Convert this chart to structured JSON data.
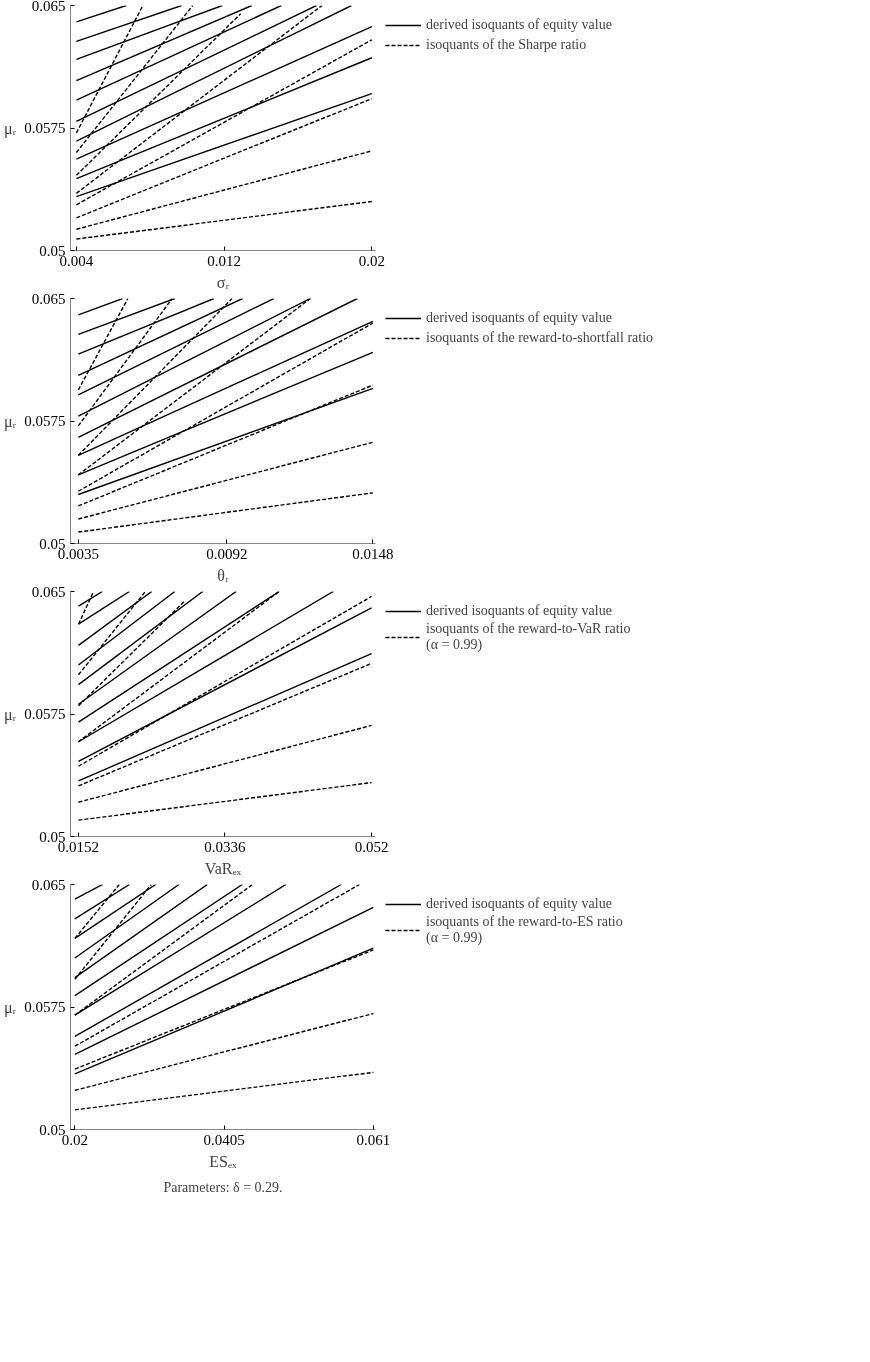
{
  "chart_data": [
    {
      "type": "line",
      "xlabel": "σᵣ",
      "ylabel": "μᵣ",
      "xlim": [
        0.00368,
        0.0202
      ],
      "ylim": [
        0.05,
        0.065
      ],
      "xticks": [
        0.004,
        0.012,
        0.02
      ],
      "yticks": [
        0.05,
        0.0575,
        0.065
      ],
      "grid": false,
      "legend": "right",
      "series": [
        {
          "name": "derived isoquants of equity value",
          "color": "#000000",
          "line_style": "solid",
          "x": [
            0.004,
            0.0067
          ],
          "values": [
            0.064,
            0.065
          ]
        },
        {
          "color": "#000000",
          "line_style": "solid",
          "x": [
            0.004,
            0.0097
          ],
          "values": [
            0.0628,
            0.065
          ]
        },
        {
          "color": "#000000",
          "line_style": "solid",
          "x": [
            0.004,
            0.0119
          ],
          "values": [
            0.0617,
            0.065
          ]
        },
        {
          "color": "#000000",
          "line_style": "solid",
          "x": [
            0.004,
            0.0135
          ],
          "values": [
            0.0604,
            0.065
          ]
        },
        {
          "color": "#000000",
          "line_style": "solid",
          "x": [
            0.004,
            0.0151
          ],
          "values": [
            0.0592,
            0.065
          ]
        },
        {
          "color": "#000000",
          "line_style": "solid",
          "x": [
            0.004,
            0.017
          ],
          "values": [
            0.0579,
            0.065
          ]
        },
        {
          "color": "#000000",
          "line_style": "solid",
          "x": [
            0.004,
            0.0189
          ],
          "values": [
            0.0567,
            0.065
          ]
        },
        {
          "color": "#000000",
          "line_style": "solid",
          "x": [
            0.004,
            0.02
          ],
          "values": [
            0.0556,
            0.0637
          ]
        },
        {
          "color": "#000000",
          "line_style": "solid",
          "x": [
            0.004,
            0.02
          ],
          "values": [
            0.0544,
            0.0618
          ]
        },
        {
          "color": "#000000",
          "line_style": "solid",
          "x": [
            0.004,
            0.02
          ],
          "values": [
            0.0533,
            0.0596
          ]
        },
        {
          "name": "isoquants of the Sharpe ratio",
          "color": "#000000",
          "line_style": "dashed",
          "x": [
            0.004,
            0.0076
          ],
          "values": [
            0.0572,
            0.065
          ]
        },
        {
          "color": "#000000",
          "line_style": "dashed",
          "x": [
            0.004,
            0.0103
          ],
          "values": [
            0.056,
            0.065
          ]
        },
        {
          "color": "#000000",
          "line_style": "dashed",
          "x": [
            0.004,
            0.0129
          ],
          "values": [
            0.0546,
            0.0645
          ]
        },
        {
          "color": "#000000",
          "line_style": "dashed",
          "x": [
            0.004,
            0.0173
          ],
          "values": [
            0.0535,
            0.065
          ]
        },
        {
          "color": "#000000",
          "line_style": "dashed",
          "x": [
            0.004,
            0.02
          ],
          "values": [
            0.0528,
            0.0629
          ]
        },
        {
          "color": "#000000",
          "line_style": "dashed",
          "x": [
            0.004,
            0.02
          ],
          "values": [
            0.052,
            0.0593
          ]
        },
        {
          "color": "#000000",
          "line_style": "dashed",
          "x": [
            0.004,
            0.02
          ],
          "values": [
            0.0513,
            0.0561
          ]
        },
        {
          "color": "#000000",
          "line_style": "dashed",
          "x": [
            0.004,
            0.02
          ],
          "values": [
            0.0507,
            0.053
          ]
        }
      ]
    },
    {
      "type": "line",
      "xlabel": "θᵣ",
      "ylabel": "μᵣ",
      "xlim": [
        0.0032,
        0.0149
      ],
      "ylim": [
        0.05,
        0.065
      ],
      "xticks": [
        0.0035,
        0.0092,
        0.0148
      ],
      "yticks": [
        0.05,
        0.0575,
        0.065
      ],
      "grid": false,
      "legend": "right",
      "series": [
        {
          "name": "derived isoquants of equity value",
          "color": "#000000",
          "line_style": "solid",
          "x": [
            0.0035,
            0.0052
          ],
          "values": [
            0.064,
            0.065
          ]
        },
        {
          "color": "#000000",
          "line_style": "solid",
          "x": [
            0.0035,
            0.0072
          ],
          "values": [
            0.0628,
            0.065
          ]
        },
        {
          "color": "#000000",
          "line_style": "solid",
          "x": [
            0.0035,
            0.0087
          ],
          "values": [
            0.0616,
            0.065
          ]
        },
        {
          "color": "#000000",
          "line_style": "solid",
          "x": [
            0.0035,
            0.0098
          ],
          "values": [
            0.0603,
            0.065
          ]
        },
        {
          "color": "#000000",
          "line_style": "solid",
          "x": [
            0.0035,
            0.011
          ],
          "values": [
            0.0591,
            0.065
          ]
        },
        {
          "color": "#000000",
          "line_style": "solid",
          "x": [
            0.0035,
            0.0124
          ],
          "values": [
            0.0578,
            0.065
          ]
        },
        {
          "color": "#000000",
          "line_style": "solid",
          "x": [
            0.0035,
            0.0142
          ],
          "values": [
            0.0565,
            0.065
          ]
        },
        {
          "color": "#000000",
          "line_style": "solid",
          "x": [
            0.0035,
            0.0148
          ],
          "values": [
            0.0554,
            0.0636
          ]
        },
        {
          "color": "#000000",
          "line_style": "solid",
          "x": [
            0.0035,
            0.0148
          ],
          "values": [
            0.0542,
            0.0617
          ]
        },
        {
          "color": "#000000",
          "line_style": "solid",
          "x": [
            0.0035,
            0.0148
          ],
          "values": [
            0.053,
            0.0595
          ]
        },
        {
          "name": "isoquants of the reward-to-shortfall ratio",
          "color": "#000000",
          "line_style": "dashed",
          "x": [
            0.0035,
            0.0054
          ],
          "values": [
            0.0594,
            0.065
          ]
        },
        {
          "color": "#000000",
          "line_style": "dashed",
          "x": [
            0.0035,
            0.0071
          ],
          "values": [
            0.0572,
            0.065
          ]
        },
        {
          "color": "#000000",
          "line_style": "dashed",
          "x": [
            0.0035,
            0.0094
          ],
          "values": [
            0.0554,
            0.065
          ]
        },
        {
          "color": "#000000",
          "line_style": "dashed",
          "x": [
            0.0035,
            0.0124
          ],
          "values": [
            0.0542,
            0.065
          ]
        },
        {
          "color": "#000000",
          "line_style": "dashed",
          "x": [
            0.0035,
            0.0148
          ],
          "values": [
            0.0532,
            0.0635
          ]
        },
        {
          "color": "#000000",
          "line_style": "dashed",
          "x": [
            0.0035,
            0.0148
          ],
          "values": [
            0.0523,
            0.0597
          ]
        },
        {
          "color": "#000000",
          "line_style": "dashed",
          "x": [
            0.0035,
            0.0148
          ],
          "values": [
            0.0515,
            0.0562
          ]
        },
        {
          "color": "#000000",
          "line_style": "dashed",
          "x": [
            0.0035,
            0.0148
          ],
          "values": [
            0.0507,
            0.0531
          ]
        }
      ]
    },
    {
      "type": "line",
      "xlabel": "VaRₑₓ",
      "ylabel": "μᵣ",
      "xlim": [
        0.0142,
        0.0525
      ],
      "ylim": [
        0.05,
        0.065
      ],
      "xticks": [
        0.0152,
        0.0336,
        0.052
      ],
      "yticks": [
        0.05,
        0.0575,
        0.065
      ],
      "grid": false,
      "legend": "right",
      "series": [
        {
          "name": "derived isoquants of equity value",
          "color": "#000000",
          "line_style": "solid",
          "x": [
            0.0152,
            0.0182
          ],
          "values": [
            0.0641,
            0.065
          ]
        },
        {
          "color": "#000000",
          "line_style": "solid",
          "x": [
            0.0152,
            0.0216
          ],
          "values": [
            0.063,
            0.065
          ]
        },
        {
          "color": "#000000",
          "line_style": "solid",
          "x": [
            0.0152,
            0.0244
          ],
          "values": [
            0.0617,
            0.065
          ]
        },
        {
          "color": "#000000",
          "line_style": "solid",
          "x": [
            0.0152,
            0.0273
          ],
          "values": [
            0.0605,
            0.065
          ]
        },
        {
          "color": "#000000",
          "line_style": "solid",
          "x": [
            0.0152,
            0.0308
          ],
          "values": [
            0.0593,
            0.065
          ]
        },
        {
          "color": "#000000",
          "line_style": "solid",
          "x": [
            0.0152,
            0.035
          ],
          "values": [
            0.0581,
            0.065
          ]
        },
        {
          "color": "#000000",
          "line_style": "solid",
          "x": [
            0.0152,
            0.0404
          ],
          "values": [
            0.057,
            0.065
          ]
        },
        {
          "color": "#000000",
          "line_style": "solid",
          "x": [
            0.0152,
            0.0472
          ],
          "values": [
            0.0558,
            0.065
          ]
        },
        {
          "color": "#000000",
          "line_style": "solid",
          "x": [
            0.0152,
            0.052
          ],
          "values": [
            0.0546,
            0.064
          ]
        },
        {
          "color": "#000000",
          "line_style": "solid",
          "x": [
            0.0152,
            0.052
          ],
          "values": [
            0.0534,
            0.0612
          ]
        },
        {
          "name": "isoquants of the reward-to-VaR ratio\n(α = 0.99)",
          "color": "#000000",
          "line_style": "dashed",
          "x": [
            0.0152,
            0.0171
          ],
          "values": [
            0.063,
            0.065
          ]
        },
        {
          "color": "#000000",
          "line_style": "dashed",
          "x": [
            0.0152,
            0.0236
          ],
          "values": [
            0.0599,
            0.065
          ]
        },
        {
          "color": "#000000",
          "line_style": "dashed",
          "x": [
            0.0152,
            0.0285
          ],
          "values": [
            0.058,
            0.0644
          ]
        },
        {
          "color": "#000000",
          "line_style": "dashed",
          "x": [
            0.0152,
            0.0404
          ],
          "values": [
            0.0558,
            0.065
          ]
        },
        {
          "color": "#000000",
          "line_style": "dashed",
          "x": [
            0.0152,
            0.052
          ],
          "values": [
            0.0543,
            0.0647
          ]
        },
        {
          "color": "#000000",
          "line_style": "dashed",
          "x": [
            0.0152,
            0.052
          ],
          "values": [
            0.0531,
            0.0606
          ]
        },
        {
          "color": "#000000",
          "line_style": "dashed",
          "x": [
            0.0152,
            0.052
          ],
          "values": [
            0.0521,
            0.0568
          ]
        },
        {
          "color": "#000000",
          "line_style": "dashed",
          "x": [
            0.0152,
            0.052
          ],
          "values": [
            0.051,
            0.0533
          ]
        }
      ]
    },
    {
      "type": "line",
      "xlabel": "ESₑₓ",
      "ylabel": "μᵣ",
      "xlim": [
        0.0194,
        0.0613
      ],
      "ylim": [
        0.05,
        0.065
      ],
      "xticks": [
        0.02,
        0.0405,
        0.061
      ],
      "yticks": [
        0.05,
        0.0575,
        0.065
      ],
      "grid": false,
      "legend": "right",
      "annotations": [
        "Parameters: δ = 0.29."
      ],
      "series": [
        {
          "name": "derived isoquants of equity value",
          "color": "#000000",
          "line_style": "solid",
          "x": [
            0.02,
            0.0238
          ],
          "values": [
            0.0641,
            0.065
          ]
        },
        {
          "color": "#000000",
          "line_style": "solid",
          "x": [
            0.02,
            0.0275
          ],
          "values": [
            0.0629,
            0.065
          ]
        },
        {
          "color": "#000000",
          "line_style": "solid",
          "x": [
            0.02,
            0.0311
          ],
          "values": [
            0.0617,
            0.065
          ]
        },
        {
          "color": "#000000",
          "line_style": "solid",
          "x": [
            0.02,
            0.0343
          ],
          "values": [
            0.0605,
            0.065
          ]
        },
        {
          "color": "#000000",
          "line_style": "solid",
          "x": [
            0.02,
            0.0382
          ],
          "values": [
            0.0593,
            0.065
          ]
        },
        {
          "color": "#000000",
          "line_style": "solid",
          "x": [
            0.02,
            0.043
          ],
          "values": [
            0.0582,
            0.065
          ]
        },
        {
          "color": "#000000",
          "line_style": "solid",
          "x": [
            0.02,
            0.049
          ],
          "values": [
            0.057,
            0.065
          ]
        },
        {
          "color": "#000000",
          "line_style": "solid",
          "x": [
            0.02,
            0.0566
          ],
          "values": [
            0.0557,
            0.065
          ]
        },
        {
          "color": "#000000",
          "line_style": "solid",
          "x": [
            0.02,
            0.061
          ],
          "values": [
            0.0546,
            0.0636
          ]
        },
        {
          "color": "#000000",
          "line_style": "solid",
          "x": [
            0.02,
            0.061
          ],
          "values": [
            0.0534,
            0.0611
          ]
        },
        {
          "name": "isoquants of the reward-to-ES ratio\n(α = 0.99)",
          "color": "#000000",
          "line_style": "dashed",
          "x": [
            0.02,
            0.0261
          ],
          "values": [
            0.0617,
            0.065
          ]
        },
        {
          "color": "#000000",
          "line_style": "dashed",
          "x": [
            0.02,
            0.0305
          ],
          "values": [
            0.0592,
            0.065
          ]
        },
        {
          "color": "#000000",
          "line_style": "dashed",
          "x": [
            0.02,
            0.0444
          ],
          "values": [
            0.057,
            0.065
          ]
        },
        {
          "color": "#000000",
          "line_style": "dashed",
          "x": [
            0.02,
            0.0591
          ],
          "values": [
            0.0551,
            0.065
          ]
        },
        {
          "color": "#000000",
          "line_style": "dashed",
          "x": [
            0.02,
            0.061
          ],
          "values": [
            0.0537,
            0.061
          ]
        },
        {
          "color": "#000000",
          "line_style": "dashed",
          "x": [
            0.02,
            0.061
          ],
          "values": [
            0.0524,
            0.0571
          ]
        },
        {
          "color": "#000000",
          "line_style": "dashed",
          "x": [
            0.02,
            0.061
          ],
          "values": [
            0.0512,
            0.0535
          ]
        }
      ]
    }
  ]
}
